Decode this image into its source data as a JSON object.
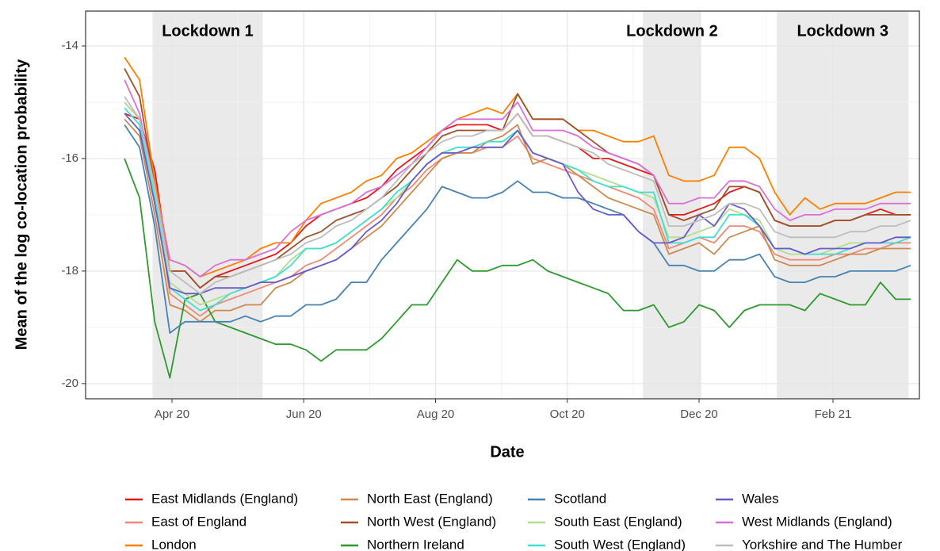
{
  "chart_data": {
    "type": "line",
    "xlabel": "Date",
    "ylabel": "Mean of the log co-location probability",
    "x": [
      "2020-03-10",
      "2020-03-17",
      "2020-03-24",
      "2020-03-31",
      "2020-04-07",
      "2020-04-14",
      "2020-04-21",
      "2020-04-28",
      "2020-05-05",
      "2020-05-12",
      "2020-05-19",
      "2020-05-26",
      "2020-06-02",
      "2020-06-09",
      "2020-06-16",
      "2020-06-23",
      "2020-06-30",
      "2020-07-07",
      "2020-07-14",
      "2020-07-21",
      "2020-07-28",
      "2020-08-04",
      "2020-08-11",
      "2020-08-18",
      "2020-08-25",
      "2020-09-01",
      "2020-09-08",
      "2020-09-15",
      "2020-09-22",
      "2020-09-29",
      "2020-10-06",
      "2020-10-13",
      "2020-10-20",
      "2020-10-27",
      "2020-11-03",
      "2020-11-10",
      "2020-11-17",
      "2020-11-24",
      "2020-12-01",
      "2020-12-08",
      "2020-12-15",
      "2020-12-22",
      "2020-12-29",
      "2021-01-05",
      "2021-01-12",
      "2021-01-19",
      "2021-01-26",
      "2021-02-02",
      "2021-02-09",
      "2021-02-16",
      "2021-02-23",
      "2021-03-02",
      "2021-03-09"
    ],
    "xlim": [
      "2020-02-21",
      "2021-03-13"
    ],
    "xticks": [
      {
        "value": "2020-04-01",
        "label": "Apr 20"
      },
      {
        "value": "2020-06-01",
        "label": "Jun 20"
      },
      {
        "value": "2020-08-01",
        "label": "Aug 20"
      },
      {
        "value": "2020-10-01",
        "label": "Oct 20"
      },
      {
        "value": "2020-12-01",
        "label": "Dec 20"
      },
      {
        "value": "2021-02-01",
        "label": "Feb 21"
      }
    ],
    "ylim": [
      -20.27,
      -13.38
    ],
    "yticks": [
      -20,
      -18,
      -16,
      -14
    ],
    "grid": true,
    "shaded_regions": [
      {
        "label": "Lockdown 1",
        "start": "2020-03-23",
        "end": "2020-05-13"
      },
      {
        "label": "Lockdown 2",
        "start": "2020-11-05",
        "end": "2020-12-02"
      },
      {
        "label": "Lockdown 3",
        "start": "2021-01-06",
        "end": "2021-03-08"
      }
    ],
    "series": [
      {
        "name": "East Midlands (England)",
        "color": "#e41a1c",
        "values": [
          -15.2,
          -15.3,
          -16.2,
          -18.0,
          -18.0,
          -18.3,
          -18.1,
          -18.0,
          -17.9,
          -17.8,
          -17.7,
          -17.5,
          -17.2,
          -17.0,
          -16.9,
          -16.8,
          -16.7,
          -16.5,
          -16.2,
          -16.0,
          -15.8,
          -15.5,
          -15.4,
          -15.4,
          -15.4,
          -15.5,
          -15.2,
          -15.6,
          -15.6,
          -15.7,
          -15.8,
          -16.0,
          -16.0,
          -16.1,
          -16.2,
          -16.3,
          -17.0,
          -17.0,
          -16.9,
          -16.8,
          -16.6,
          -16.5,
          -16.6,
          -17.1,
          -17.2,
          -17.2,
          -17.2,
          -17.1,
          -17.1,
          -17.0,
          -16.9,
          -17.0,
          -17.0
        ]
      },
      {
        "name": "East of England",
        "color": "#f08a74",
        "values": [
          -15.0,
          -15.3,
          -16.6,
          -18.4,
          -18.6,
          -18.8,
          -18.6,
          -18.5,
          -18.4,
          -18.3,
          -18.2,
          -18.1,
          -17.9,
          -17.8,
          -17.6,
          -17.4,
          -17.2,
          -17.0,
          -16.7,
          -16.5,
          -16.2,
          -16.0,
          -15.9,
          -15.9,
          -15.8,
          -15.8,
          -15.6,
          -16.0,
          -16.1,
          -16.2,
          -16.3,
          -16.4,
          -16.5,
          -16.6,
          -16.7,
          -16.9,
          -17.6,
          -17.5,
          -17.4,
          -17.5,
          -17.2,
          -17.2,
          -17.3,
          -17.7,
          -17.8,
          -17.8,
          -17.8,
          -17.7,
          -17.7,
          -17.6,
          -17.6,
          -17.5,
          -17.5
        ]
      },
      {
        "name": "London",
        "color": "#ff7f00",
        "values": [
          -14.2,
          -14.6,
          -16.4,
          -17.8,
          -17.9,
          -18.1,
          -18.0,
          -17.9,
          -17.8,
          -17.6,
          -17.5,
          -17.5,
          -17.1,
          -16.8,
          -16.7,
          -16.6,
          -16.4,
          -16.3,
          -16.0,
          -15.9,
          -15.7,
          -15.5,
          -15.3,
          -15.2,
          -15.1,
          -15.2,
          -14.85,
          -15.3,
          -15.3,
          -15.3,
          -15.5,
          -15.5,
          -15.6,
          -15.7,
          -15.7,
          -15.6,
          -16.3,
          -16.4,
          -16.4,
          -16.3,
          -15.8,
          -15.8,
          -16.0,
          -16.6,
          -17.0,
          -16.7,
          -16.9,
          -16.8,
          -16.8,
          -16.8,
          -16.7,
          -16.6,
          -16.6
        ]
      },
      {
        "name": "North East (England)",
        "color": "#cd8a4f",
        "values": [
          -15.3,
          -15.6,
          -17.0,
          -18.6,
          -18.7,
          -18.9,
          -18.7,
          -18.7,
          -18.6,
          -18.6,
          -18.3,
          -18.2,
          -18.0,
          -17.9,
          -17.8,
          -17.6,
          -17.4,
          -17.2,
          -16.9,
          -16.6,
          -16.3,
          -16.0,
          -15.9,
          -15.9,
          -15.7,
          -15.6,
          -15.4,
          -16.1,
          -16.0,
          -16.1,
          -16.3,
          -16.5,
          -16.7,
          -16.8,
          -16.9,
          -17.0,
          -17.7,
          -17.6,
          -17.5,
          -17.7,
          -17.4,
          -17.3,
          -17.2,
          -17.8,
          -17.9,
          -17.9,
          -17.9,
          -17.8,
          -17.7,
          -17.7,
          -17.6,
          -17.6,
          -17.6
        ]
      },
      {
        "name": "North West (England)",
        "color": "#a0522d",
        "values": [
          -14.4,
          -14.9,
          -16.5,
          -18.0,
          -18.0,
          -18.3,
          -18.1,
          -18.1,
          -18.0,
          -17.9,
          -17.8,
          -17.6,
          -17.4,
          -17.3,
          -17.1,
          -17.0,
          -16.9,
          -16.7,
          -16.5,
          -16.2,
          -15.9,
          -15.6,
          -15.5,
          -15.5,
          -15.5,
          -15.5,
          -14.85,
          -15.3,
          -15.3,
          -15.3,
          -15.5,
          -15.7,
          -15.9,
          -16.0,
          -16.1,
          -16.3,
          -17.0,
          -17.1,
          -17.0,
          -16.9,
          -16.5,
          -16.5,
          -16.6,
          -17.1,
          -17.2,
          -17.2,
          -17.2,
          -17.1,
          -17.1,
          -17.0,
          -17.0,
          -17.0,
          -17.0
        ]
      },
      {
        "name": "Northern Ireland",
        "color": "#2e9a2e",
        "values": [
          -16.0,
          -16.7,
          -18.9,
          -19.9,
          -18.5,
          -18.4,
          -18.9,
          -19.0,
          -19.1,
          -19.2,
          -19.3,
          -19.3,
          -19.4,
          -19.6,
          -19.4,
          -19.4,
          -19.4,
          -19.2,
          -18.9,
          -18.6,
          -18.6,
          -18.2,
          -17.8,
          -18.0,
          -18.0,
          -17.9,
          -17.9,
          -17.8,
          -18.0,
          -18.1,
          -18.2,
          -18.3,
          -18.4,
          -18.7,
          -18.7,
          -18.6,
          -19.0,
          -18.9,
          -18.6,
          -18.7,
          -19.0,
          -18.7,
          -18.6,
          -18.6,
          -18.6,
          -18.7,
          -18.4,
          -18.5,
          -18.6,
          -18.6,
          -18.2,
          -18.5,
          -18.5
        ]
      },
      {
        "name": "Scotland",
        "color": "#4682b4",
        "values": [
          -15.4,
          -15.8,
          -17.2,
          -19.1,
          -18.9,
          -18.9,
          -18.9,
          -18.9,
          -18.8,
          -18.9,
          -18.8,
          -18.8,
          -18.6,
          -18.6,
          -18.5,
          -18.2,
          -18.2,
          -17.8,
          -17.5,
          -17.2,
          -16.9,
          -16.5,
          -16.6,
          -16.7,
          -16.7,
          -16.6,
          -16.4,
          -16.6,
          -16.6,
          -16.7,
          -16.7,
          -16.8,
          -16.9,
          -17.0,
          -17.3,
          -17.5,
          -17.9,
          -17.9,
          -18.0,
          -18.0,
          -17.8,
          -17.8,
          -17.7,
          -18.1,
          -18.2,
          -18.2,
          -18.1,
          -18.1,
          -18.0,
          -18.0,
          -18.0,
          -18.0,
          -17.9
        ]
      },
      {
        "name": "South East (England)",
        "color": "#b2df8a",
        "values": [
          -15.0,
          -15.3,
          -16.6,
          -18.2,
          -18.4,
          -18.6,
          -18.5,
          -18.4,
          -18.3,
          -18.2,
          -18.1,
          -17.8,
          -17.6,
          -17.6,
          -17.5,
          -17.3,
          -17.1,
          -16.9,
          -16.7,
          -16.4,
          -16.1,
          -15.9,
          -15.9,
          -15.8,
          -15.8,
          -15.8,
          -15.5,
          -15.9,
          -16.0,
          -16.1,
          -16.2,
          -16.3,
          -16.4,
          -16.5,
          -16.6,
          -16.7,
          -17.4,
          -17.4,
          -17.3,
          -17.2,
          -16.9,
          -17.0,
          -17.1,
          -17.6,
          -17.7,
          -17.7,
          -17.7,
          -17.6,
          -17.5,
          -17.5,
          -17.5,
          -17.4,
          -17.4
        ]
      },
      {
        "name": "South West (England)",
        "color": "#40e0d0",
        "values": [
          -15.1,
          -15.4,
          -16.7,
          -18.3,
          -18.5,
          -18.7,
          -18.6,
          -18.4,
          -18.3,
          -18.2,
          -18.1,
          -17.9,
          -17.6,
          -17.6,
          -17.5,
          -17.3,
          -17.1,
          -16.9,
          -16.6,
          -16.4,
          -16.1,
          -15.9,
          -15.8,
          -15.8,
          -15.7,
          -15.7,
          -15.5,
          -15.9,
          -16.0,
          -16.1,
          -16.2,
          -16.4,
          -16.5,
          -16.5,
          -16.6,
          -16.6,
          -17.5,
          -17.5,
          -17.4,
          -17.4,
          -17.0,
          -17.0,
          -17.2,
          -17.6,
          -17.6,
          -17.7,
          -17.7,
          -17.7,
          -17.6,
          -17.5,
          -17.5,
          -17.5,
          -17.4
        ]
      },
      {
        "name": "Wales",
        "color": "#6a5acd",
        "values": [
          -15.2,
          -15.5,
          -16.8,
          -18.3,
          -18.4,
          -18.4,
          -18.3,
          -18.3,
          -18.3,
          -18.2,
          -18.2,
          -18.1,
          -18.0,
          -17.9,
          -17.8,
          -17.6,
          -17.3,
          -17.1,
          -16.8,
          -16.4,
          -16.1,
          -15.9,
          -15.9,
          -15.8,
          -15.8,
          -15.8,
          -15.5,
          -15.9,
          -16.0,
          -16.1,
          -16.6,
          -16.9,
          -17.0,
          -17.0,
          -17.3,
          -17.5,
          -17.5,
          -17.4,
          -17.0,
          -17.2,
          -16.8,
          -16.9,
          -17.2,
          -17.6,
          -17.6,
          -17.7,
          -17.6,
          -17.6,
          -17.6,
          -17.5,
          -17.5,
          -17.4,
          -17.4
        ]
      },
      {
        "name": "West Midlands (England)",
        "color": "#da70d6",
        "values": [
          -14.6,
          -15.2,
          -16.5,
          -17.8,
          -17.9,
          -18.1,
          -17.9,
          -17.8,
          -17.8,
          -17.7,
          -17.6,
          -17.3,
          -17.1,
          -17.0,
          -16.9,
          -16.8,
          -16.6,
          -16.5,
          -16.3,
          -16.1,
          -15.8,
          -15.5,
          -15.3,
          -15.3,
          -15.3,
          -15.3,
          -15.0,
          -15.5,
          -15.5,
          -15.5,
          -15.6,
          -15.8,
          -15.9,
          -16.0,
          -16.1,
          -16.3,
          -16.8,
          -16.8,
          -16.7,
          -16.7,
          -16.4,
          -16.4,
          -16.5,
          -16.9,
          -17.1,
          -17.0,
          -17.0,
          -16.9,
          -16.9,
          -16.9,
          -16.8,
          -16.8,
          -16.8
        ]
      },
      {
        "name": "Yorkshire and The Humber",
        "color": "#bdbdbd",
        "values": [
          -14.9,
          -15.3,
          -16.5,
          -18.0,
          -18.2,
          -18.4,
          -18.2,
          -18.1,
          -18.0,
          -17.9,
          -17.8,
          -17.7,
          -17.5,
          -17.4,
          -17.2,
          -17.1,
          -16.9,
          -16.7,
          -16.4,
          -16.1,
          -15.9,
          -15.7,
          -15.6,
          -15.6,
          -15.5,
          -15.5,
          -15.2,
          -15.6,
          -15.6,
          -15.7,
          -15.8,
          -15.9,
          -16.1,
          -16.2,
          -16.3,
          -16.4,
          -17.2,
          -17.2,
          -17.1,
          -17.0,
          -16.8,
          -16.8,
          -16.9,
          -17.3,
          -17.4,
          -17.4,
          -17.4,
          -17.4,
          -17.3,
          -17.3,
          -17.2,
          -17.2,
          -17.1
        ]
      }
    ]
  }
}
